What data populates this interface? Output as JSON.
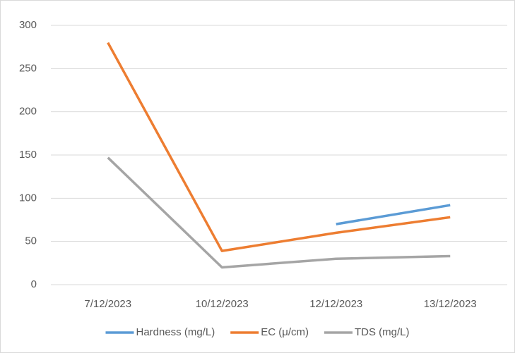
{
  "chart_data": {
    "type": "line",
    "categories": [
      "7/12/2023",
      "10/12/2023",
      "12/12/2023",
      "13/12/2023"
    ],
    "series": [
      {
        "name": "Hardness (mg/L)",
        "color": "#5b9bd5",
        "values": [
          null,
          null,
          70,
          92
        ]
      },
      {
        "name": "EC (μ/cm)",
        "color": "#ed7d31",
        "values": [
          280,
          39,
          60,
          78
        ]
      },
      {
        "name": "TDS (mg/L)",
        "color": "#a5a5a5",
        "values": [
          147,
          20,
          30,
          33
        ]
      }
    ],
    "ylim": [
      0,
      300
    ],
    "yticks": [
      0,
      50,
      100,
      150,
      200,
      250,
      300
    ],
    "grid": true,
    "legend": "bottom"
  }
}
